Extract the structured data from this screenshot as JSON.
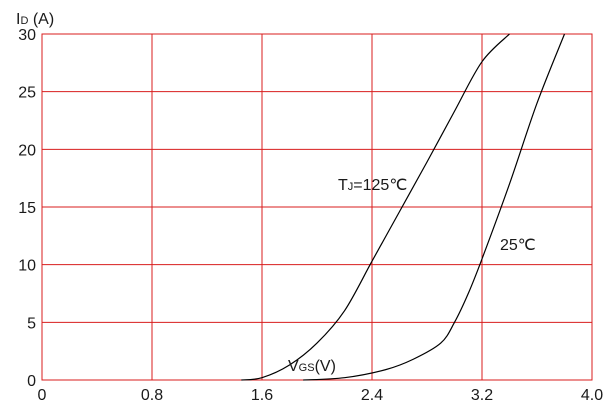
{
  "chart_data": {
    "type": "line",
    "ylabel": {
      "main": "I",
      "sub": "D",
      "rest": " (A)"
    },
    "xlabel": {
      "main": "V",
      "sub": "GS",
      "rest": "(V)"
    },
    "xlim": [
      0,
      4.0
    ],
    "ylim": [
      0,
      30
    ],
    "x_ticks": [
      "0",
      "0.8",
      "1.6",
      "2.4",
      "3.2",
      "4.0"
    ],
    "y_ticks": [
      "0",
      "5",
      "10",
      "15",
      "20",
      "25",
      "30"
    ],
    "grid": true,
    "grid_color": "#d81e1e",
    "line_color": "#000000",
    "series": [
      {
        "name": "TJ=125℃",
        "label": {
          "main": "T",
          "sub": "J",
          "rest": "=125℃"
        },
        "points": [
          [
            1.45,
            0
          ],
          [
            1.6,
            0.2
          ],
          [
            1.8,
            1.3
          ],
          [
            2.0,
            3.2
          ],
          [
            2.2,
            6
          ],
          [
            2.4,
            10.3
          ],
          [
            2.6,
            14.6
          ],
          [
            2.8,
            18.9
          ],
          [
            3.0,
            23.3
          ],
          [
            3.2,
            27.6
          ],
          [
            3.4,
            30
          ]
        ]
      },
      {
        "name": "25℃",
        "label": {
          "main": "25℃",
          "sub": "",
          "rest": ""
        },
        "points": [
          [
            1.9,
            0
          ],
          [
            2.2,
            0.2
          ],
          [
            2.5,
            0.9
          ],
          [
            2.7,
            1.8
          ],
          [
            2.9,
            3.2
          ],
          [
            3.0,
            5
          ],
          [
            3.1,
            7.5
          ],
          [
            3.2,
            10.5
          ],
          [
            3.4,
            17
          ],
          [
            3.6,
            24
          ],
          [
            3.8,
            30
          ]
        ]
      }
    ]
  }
}
